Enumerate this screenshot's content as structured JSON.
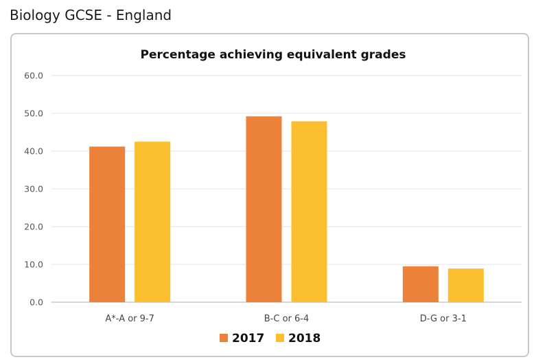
{
  "page": {
    "heading": "Biology GCSE - England"
  },
  "colors": {
    "series_2017": "#ec8139",
    "series_2018": "#fbbe2e",
    "grid": "#e3e3e3",
    "axis": "#c8c8c8"
  },
  "chart_data": {
    "type": "bar",
    "title": "Percentage achieving equivalent grades",
    "xlabel": "",
    "ylabel": "",
    "ylim": [
      0,
      60
    ],
    "yticks": [
      "0.0",
      "10.0",
      "20.0",
      "30.0",
      "40.0",
      "50.0",
      "60.0"
    ],
    "categories": [
      "A*-A or 9-7",
      "B-C or 6-4",
      "D-G or 3-1"
    ],
    "series": [
      {
        "name": "2017",
        "values": [
          41.2,
          49.2,
          9.5
        ]
      },
      {
        "name": "2018",
        "values": [
          42.5,
          47.9,
          8.9
        ]
      }
    ],
    "legend_position": "bottom",
    "grid": true
  }
}
